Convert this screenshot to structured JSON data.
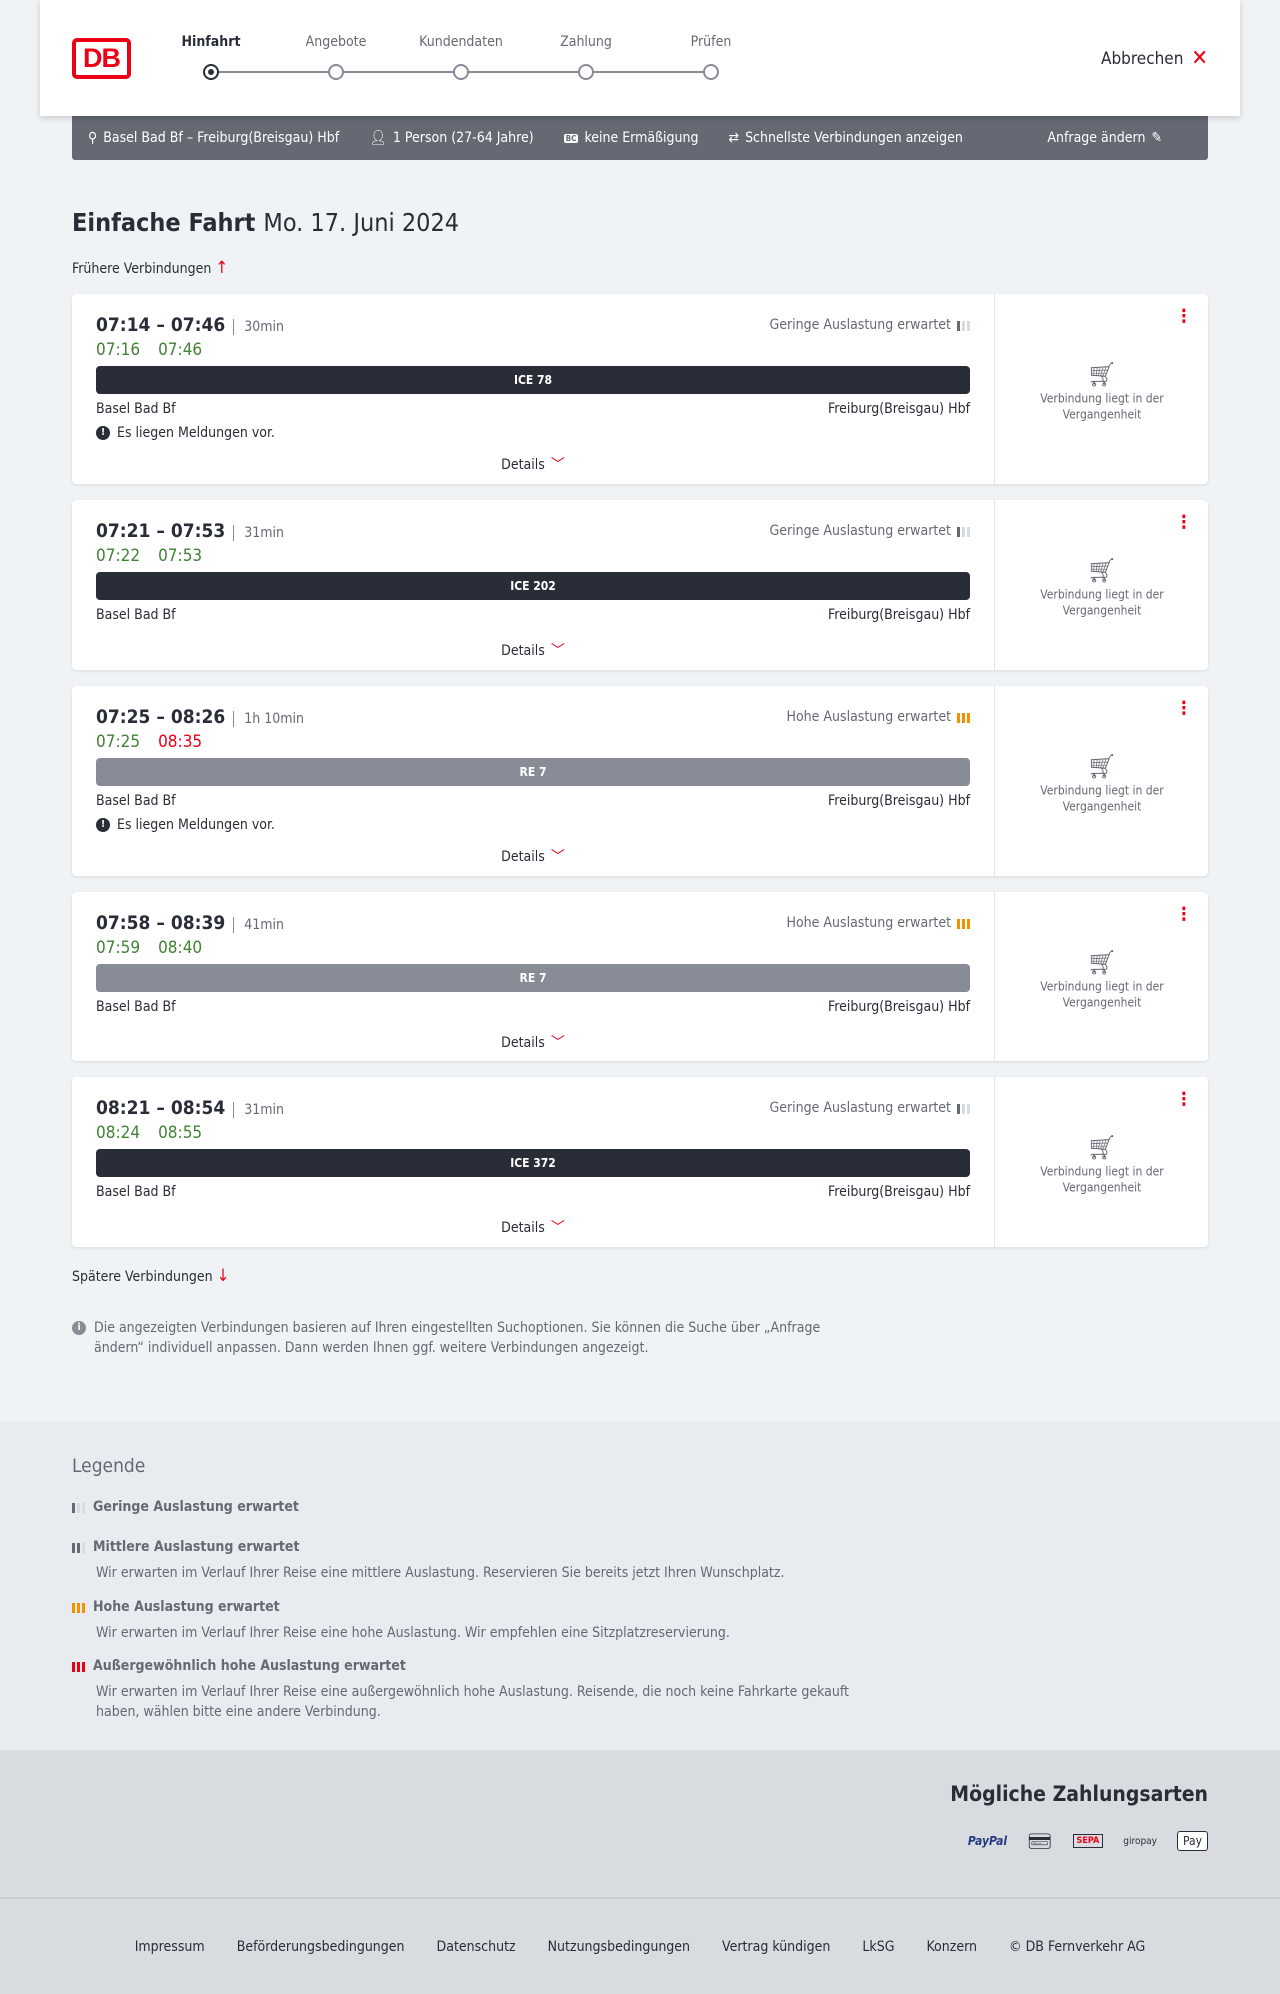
{
  "header": {
    "logo": "DB",
    "steps": [
      {
        "label": "Hinfahrt",
        "active": true
      },
      {
        "label": "Angebote"
      },
      {
        "label": "Kundendaten"
      },
      {
        "label": "Zahlung"
      },
      {
        "label": "Prüfen"
      }
    ],
    "cancel": "Abbrechen"
  },
  "search": {
    "route": "Basel Bad Bf – Freiburg(Breisgau) Hbf",
    "passengers": "1 Person (27-64 Jahre)",
    "discount_badge": "BC",
    "discount": "keine Ermäßigung",
    "option": "Schnellste Verbindungen anzeigen",
    "edit": "Anfrage ändern"
  },
  "title": {
    "main": "Einfache Fahrt",
    "date": "Mo. 17. Juni 2024"
  },
  "earlier": "Frühere Verbindungen",
  "later": "Spätere Verbindungen",
  "connections": [
    {
      "times": "07:14 – 07:46",
      "duration": "30min",
      "occupancy": "Geringe Auslastung erwartet",
      "occ_level": 1,
      "rt_dep": "07:16",
      "rt_arr": "07:46",
      "rt_arr_late": false,
      "train": "ICE 78",
      "train_color": "#282d37",
      "from": "Basel Bad Bf",
      "to": "Freiburg(Breisgau) Hbf",
      "message": "Es liegen Meldungen vor.",
      "details": "Details",
      "status": "Verbindung liegt in der Vergangenheit"
    },
    {
      "times": "07:21 – 07:53",
      "duration": "31min",
      "occupancy": "Geringe Auslastung erwartet",
      "occ_level": 1,
      "rt_dep": "07:22",
      "rt_arr": "07:53",
      "rt_arr_late": false,
      "train": "ICE 202",
      "train_color": "#282d37",
      "from": "Basel Bad Bf",
      "to": "Freiburg(Breisgau) Hbf",
      "message": "",
      "details": "Details",
      "status": "Verbindung liegt in der Vergangenheit"
    },
    {
      "times": "07:25 – 08:26",
      "duration": "1h 10min",
      "occupancy": "Hohe Auslastung erwartet",
      "occ_level": 3,
      "rt_dep": "07:25",
      "rt_arr": "08:35",
      "rt_arr_late": true,
      "train": "RE 7",
      "train_color": "#878c96",
      "from": "Basel Bad Bf",
      "to": "Freiburg(Breisgau) Hbf",
      "message": "Es liegen Meldungen vor.",
      "details": "Details",
      "status": "Verbindung liegt in der Vergangenheit"
    },
    {
      "times": "07:58 – 08:39",
      "duration": "41min",
      "occupancy": "Hohe Auslastung erwartet",
      "occ_level": 3,
      "rt_dep": "07:59",
      "rt_arr": "08:40",
      "rt_arr_late": false,
      "train": "RE 7",
      "train_color": "#878c96",
      "from": "Basel Bad Bf",
      "to": "Freiburg(Breisgau) Hbf",
      "message": "",
      "details": "Details",
      "status": "Verbindung liegt in der Vergangenheit"
    },
    {
      "times": "08:21 – 08:54",
      "duration": "31min",
      "occupancy": "Geringe Auslastung erwartet",
      "occ_level": 1,
      "rt_dep": "08:24",
      "rt_arr": "08:55",
      "rt_arr_late": false,
      "train": "ICE 372",
      "train_color": "#282d37",
      "from": "Basel Bad Bf",
      "to": "Freiburg(Breisgau) Hbf",
      "message": "",
      "details": "Details",
      "status": "Verbindung liegt in der Vergangenheit"
    }
  ],
  "note": "Die angezeigten Verbindungen basieren auf Ihren eingestellten Suchoptionen. Sie können die Suche über „Anfrage ändern“ individuell anpassen. Dann werden Ihnen ggf. weitere Verbindungen angezeigt.",
  "legend": {
    "title": "Legende",
    "items": [
      {
        "label": "Geringe Auslastung erwartet",
        "text": "",
        "level": 1
      },
      {
        "label": "Mittlere Auslastung erwartet",
        "text": "Wir erwarten im Verlauf Ihrer Reise eine mittlere Auslastung. Reservieren Sie bereits jetzt Ihren Wunschplatz.",
        "level": 2
      },
      {
        "label": "Hohe Auslastung erwartet",
        "text": "Wir erwarten im Verlauf Ihrer Reise eine hohe Auslastung. Wir empfehlen eine Sitzplatzreservierung.",
        "level": 3
      },
      {
        "label": "Außergewöhnlich hohe Auslastung erwartet",
        "text": "Wir erwarten im Verlauf Ihrer Reise eine außergewöhnlich hohe Auslastung. Reisende, die noch keine Fahrkarte gekauft haben, wählen bitte eine andere Verbindung.",
        "level": 4
      }
    ]
  },
  "payment": {
    "title": "Mögliche Zahlungsarten",
    "methods": [
      "PayPal",
      "SEPA",
      "giropay",
      "Pay"
    ]
  },
  "footer": [
    "Impressum",
    "Beförderungsbedingungen",
    "Datenschutz",
    "Nutzungsbedingungen",
    "Vertrag kündigen",
    "LkSG",
    "Konzern",
    "© DB Fernverkehr AG"
  ],
  "colors": {
    "accent": "#ec0016",
    "on_time": "#408335",
    "high_occupancy": "#f39200"
  }
}
